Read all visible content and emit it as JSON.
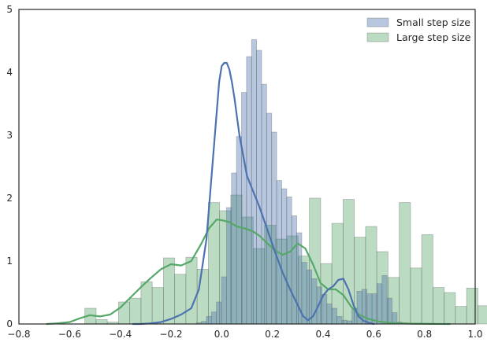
{
  "chart_data": {
    "type": "bar",
    "title": "",
    "xlabel": "",
    "ylabel": "",
    "xlim": [
      -0.8,
      1.0
    ],
    "ylim": [
      0,
      5
    ],
    "xticks": [
      -0.8,
      -0.6,
      -0.4,
      -0.2,
      0.0,
      0.2,
      0.4,
      0.6,
      0.8,
      1.0
    ],
    "xtick_labels": [
      "−0.8",
      "−0.6",
      "−0.4",
      "−0.2",
      "0.0",
      "0.2",
      "0.4",
      "0.6",
      "0.8",
      "1.0"
    ],
    "yticks": [
      0,
      1,
      2,
      3,
      4,
      5
    ],
    "ytick_labels": [
      "0",
      "1",
      "2",
      "3",
      "4",
      "5"
    ],
    "grid": false,
    "legend_position": "top-right",
    "series": [
      {
        "name": "Large step size",
        "color": "#55a868",
        "hist": {
          "bin_width": 0.0443,
          "edges_start": -0.54,
          "heights": [
            0.25,
            0.07,
            0.03,
            0.35,
            0.41,
            0.67,
            0.58,
            1.05,
            0.79,
            1.06,
            0.87,
            1.93,
            1.8,
            2.05,
            1.7,
            1.2,
            1.57,
            1.35,
            1.4,
            1.08,
            2.0,
            0.96,
            1.6,
            1.98,
            1.38,
            1.55,
            1.15,
            0.74,
            1.93,
            0.89,
            1.42,
            0.58,
            0.5,
            0.28,
            0.57,
            0.29,
            0.31,
            0.15,
            0.06,
            0.02
          ]
        },
        "kde": {
          "x": [
            -0.69,
            -0.65,
            -0.6,
            -0.56,
            -0.52,
            -0.48,
            -0.44,
            -0.4,
            -0.36,
            -0.32,
            -0.28,
            -0.24,
            -0.2,
            -0.16,
            -0.12,
            -0.08,
            -0.05,
            -0.02,
            0.0,
            0.03,
            0.06,
            0.09,
            0.12,
            0.15,
            0.18,
            0.21,
            0.24,
            0.27,
            0.3,
            0.33,
            0.36,
            0.39,
            0.42,
            0.45,
            0.48,
            0.51,
            0.54,
            0.58,
            0.62,
            0.66,
            0.7,
            0.75,
            0.8,
            0.85,
            0.9
          ],
          "y": [
            0.0,
            0.01,
            0.03,
            0.09,
            0.14,
            0.12,
            0.15,
            0.26,
            0.42,
            0.58,
            0.73,
            0.87,
            0.95,
            0.93,
            1.0,
            1.28,
            1.52,
            1.66,
            1.65,
            1.62,
            1.55,
            1.52,
            1.48,
            1.4,
            1.28,
            1.17,
            1.1,
            1.15,
            1.28,
            1.2,
            0.95,
            0.65,
            0.55,
            0.55,
            0.46,
            0.28,
            0.15,
            0.08,
            0.04,
            0.02,
            0.01,
            0.005,
            0.003,
            0.001,
            0.0
          ]
        }
      },
      {
        "name": "Small step size",
        "color": "#4c72b0",
        "hist": {
          "bin_width": 0.0198,
          "edges_start": -0.1,
          "heights": [
            0.02,
            0.04,
            0.12,
            0.19,
            0.35,
            0.75,
            1.85,
            2.4,
            2.98,
            3.68,
            4.25,
            4.52,
            4.35,
            3.81,
            3.35,
            3.05,
            2.28,
            2.15,
            2.02,
            1.72,
            1.45,
            0.98,
            0.86,
            0.72,
            0.59,
            0.47,
            0.32,
            0.25,
            0.12,
            0.06,
            0.05,
            0.25,
            0.52,
            0.55,
            0.48,
            0.48,
            0.64,
            0.77,
            0.41,
            0.18,
            0.03,
            0.02
          ]
        },
        "kde": {
          "x": [
            -0.35,
            -0.32,
            -0.28,
            -0.24,
            -0.2,
            -0.16,
            -0.12,
            -0.09,
            -0.06,
            -0.04,
            -0.02,
            -0.01,
            0.0,
            0.01,
            0.02,
            0.03,
            0.04,
            0.05,
            0.06,
            0.07,
            0.08,
            0.1,
            0.12,
            0.15,
            0.18,
            0.21,
            0.24,
            0.27,
            0.3,
            0.32,
            0.34,
            0.36,
            0.38,
            0.4,
            0.42,
            0.44,
            0.46,
            0.48,
            0.5,
            0.52,
            0.54,
            0.56,
            0.58,
            0.6
          ],
          "y": [
            0.0,
            0.0,
            0.01,
            0.03,
            0.08,
            0.15,
            0.25,
            0.55,
            1.35,
            2.35,
            3.35,
            3.85,
            4.1,
            4.15,
            4.15,
            4.05,
            3.85,
            3.6,
            3.3,
            3.0,
            2.78,
            2.35,
            2.15,
            1.85,
            1.5,
            1.15,
            0.82,
            0.55,
            0.3,
            0.13,
            0.06,
            0.12,
            0.28,
            0.45,
            0.55,
            0.6,
            0.7,
            0.72,
            0.55,
            0.3,
            0.12,
            0.05,
            0.02,
            0.0
          ]
        }
      }
    ]
  }
}
